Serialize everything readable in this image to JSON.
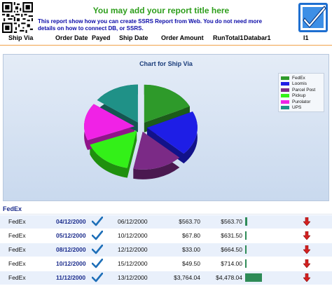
{
  "header": {
    "title": "You may add your report title here",
    "description": "This report show how you can create SSRS Report from Web. You do not need more details on how to connect DB, or SSRS."
  },
  "columns": [
    "Ship Via",
    "Order Date",
    "Payed",
    "Ship Date",
    "Order Amount",
    "RunTotal1",
    "Databar1",
    "I1"
  ],
  "chart_data": {
    "type": "pie",
    "title": "Chart for Ship Via",
    "legend_position": "right",
    "categories": [
      "FedEx",
      "Loomis",
      "Parcel Post",
      "Pickup",
      "Purolator",
      "UPS"
    ],
    "values": [
      18,
      19,
      16,
      16,
      16,
      15
    ],
    "colors": [
      "#2e9a2a",
      "#1e1ee6",
      "#7b2a86",
      "#33f018",
      "#f022e6",
      "#1f9187"
    ]
  },
  "group": {
    "label": "FedEx"
  },
  "rows": [
    {
      "ship_via": "FedEx",
      "order_date": "04/12/2000",
      "ship_date": "06/12/2000",
      "order_amount": "$563.70",
      "run_total": "$563.70",
      "bar": 0.04
    },
    {
      "ship_via": "FedEx",
      "order_date": "05/12/2000",
      "ship_date": "10/12/2000",
      "order_amount": "$67.80",
      "run_total": "$631.50",
      "bar": 0.005
    },
    {
      "ship_via": "FedEx",
      "order_date": "08/12/2000",
      "ship_date": "12/12/2000",
      "order_amount": "$33.00",
      "run_total": "$664.50",
      "bar": 0.003
    },
    {
      "ship_via": "FedEx",
      "order_date": "10/12/2000",
      "ship_date": "15/12/2000",
      "order_amount": "$49.50",
      "run_total": "$714.00",
      "bar": 0.004
    },
    {
      "ship_via": "FedEx",
      "order_date": "11/12/2000",
      "ship_date": "13/12/2000",
      "order_amount": "$3,764.04",
      "run_total": "$4,478.04",
      "bar": 0.3
    }
  ]
}
